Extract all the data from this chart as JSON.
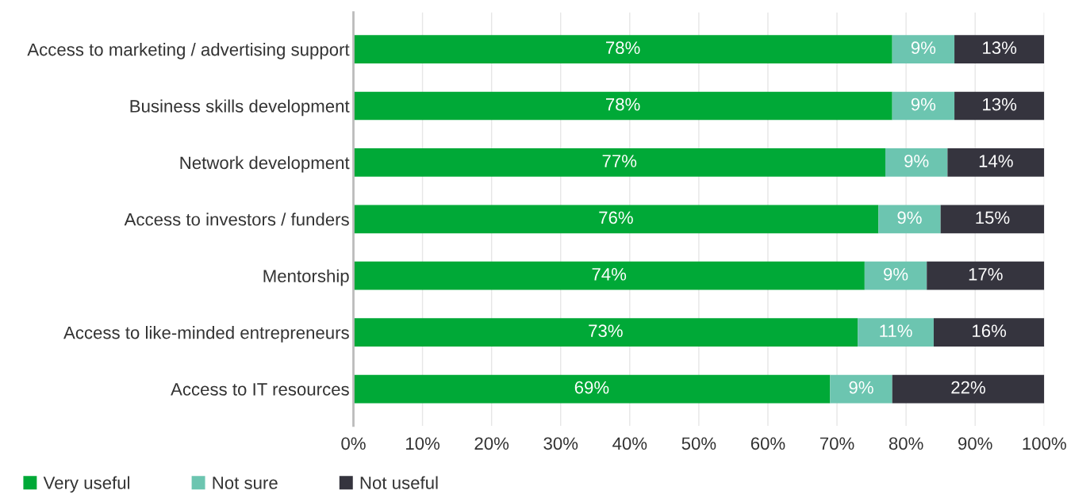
{
  "chart_data": {
    "type": "bar",
    "orientation": "horizontal",
    "stacked": true,
    "categories": [
      "Access to marketing / advertising support",
      "Business skills development",
      "Network development",
      "Access to investors / funders",
      "Mentorship",
      "Access to like-minded entrepreneurs",
      "Access to IT resources"
    ],
    "series": [
      {
        "name": "Very useful",
        "color": "#00a937",
        "values": [
          78,
          78,
          77,
          76,
          74,
          73,
          69
        ],
        "value_labels": [
          "78%",
          "78%",
          "77%",
          "76%",
          "74%",
          "73%",
          "69%"
        ]
      },
      {
        "name": "Not sure",
        "color": "#6cc5b0",
        "values": [
          9,
          9,
          9,
          9,
          9,
          11,
          9
        ],
        "value_labels": [
          "9%",
          "9%",
          "9%",
          "9%",
          "9%",
          "11%",
          "9%"
        ]
      },
      {
        "name": "Not useful",
        "color": "#35343e",
        "values": [
          13,
          13,
          14,
          15,
          17,
          16,
          22
        ],
        "value_labels": [
          "13%",
          "13%",
          "14%",
          "15%",
          "17%",
          "16%",
          "22%"
        ]
      }
    ],
    "xlim": [
      0,
      100
    ],
    "xticks": [
      {
        "value": 0,
        "label": "0%"
      },
      {
        "value": 10,
        "label": "10%"
      },
      {
        "value": 20,
        "label": "20%"
      },
      {
        "value": 30,
        "label": "30%"
      },
      {
        "value": 40,
        "label": "40%"
      },
      {
        "value": 50,
        "label": "50%"
      },
      {
        "value": 60,
        "label": "60%"
      },
      {
        "value": 70,
        "label": "70%"
      },
      {
        "value": 80,
        "label": "80%"
      },
      {
        "value": 90,
        "label": "90%"
      },
      {
        "value": 100,
        "label": "100%"
      }
    ],
    "grid": "x",
    "legend": "bottom left"
  }
}
